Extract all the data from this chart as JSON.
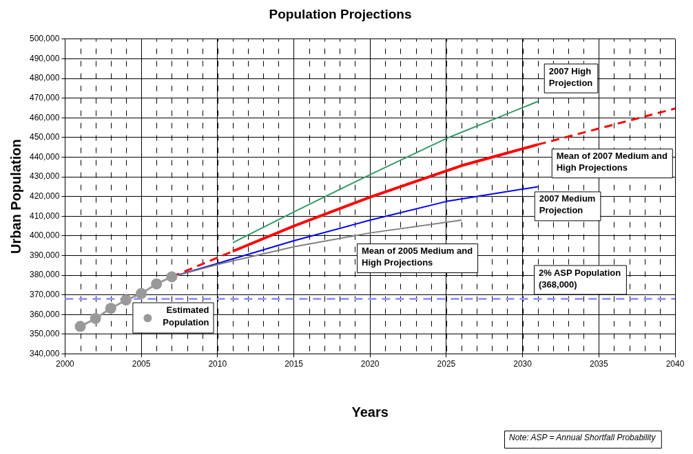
{
  "chart_data": {
    "type": "line",
    "title": "Population Projections",
    "xlabel": "Years",
    "ylabel": "Urban Population",
    "xlim": [
      2000,
      2040
    ],
    "xticks": [
      2000,
      2005,
      2010,
      2015,
      2020,
      2025,
      2030,
      2035,
      2040
    ],
    "ylim": [
      340000,
      500000
    ],
    "yticks": [
      {
        "value": 340000,
        "label": "340,000"
      },
      {
        "value": 350000,
        "label": "350,000"
      },
      {
        "value": 360000,
        "label": "360,000"
      },
      {
        "value": 370000,
        "label": "370,000"
      },
      {
        "value": 380000,
        "label": "380,000"
      },
      {
        "value": 390000,
        "label": "390,000"
      },
      {
        "value": 400000,
        "label": "400,000"
      },
      {
        "value": 410000,
        "label": "410,000"
      },
      {
        "value": 420000,
        "label": "420,000"
      },
      {
        "value": 430000,
        "label": "430,000"
      },
      {
        "value": 440000,
        "label": "440,000"
      },
      {
        "value": 450000,
        "label": "450,000"
      },
      {
        "value": 460000,
        "label": "460,000"
      },
      {
        "value": 470000,
        "label": "470,000"
      },
      {
        "value": 480000,
        "label": "480,000"
      },
      {
        "value": 490000,
        "label": "490,000"
      },
      {
        "value": 500000,
        "label": "500,000"
      }
    ],
    "grid": true,
    "legend": "bottom left",
    "series": [
      {
        "name": "Estimated Population",
        "color": "#999999",
        "marker": "circle",
        "x": [
          2001,
          2002,
          2003,
          2004,
          2005,
          2006,
          2007
        ],
        "values": [
          354000,
          358000,
          363200,
          367400,
          370700,
          375600,
          379200
        ]
      },
      {
        "name": "Mean of 2005 Medium and High Projections",
        "color": "#808080",
        "x": [
          2007,
          2010,
          2015,
          2020,
          2026
        ],
        "values": [
          379200,
          385500,
          394500,
          401500,
          408000
        ]
      },
      {
        "name": "2007 Medium Projection",
        "color": "#0000ff",
        "x": [
          2007,
          2010,
          2015,
          2020,
          2025,
          2031
        ],
        "values": [
          379200,
          386000,
          397500,
          408000,
          417500,
          425000
        ]
      },
      {
        "name": "2007 High Projection",
        "color": "#339966",
        "x": [
          2011,
          2015,
          2020,
          2025,
          2031
        ],
        "values": [
          396500,
          412200,
          431100,
          449500,
          468300
        ]
      },
      {
        "name": "Mean of 2007 Medium and High Projections",
        "color": "#ff0000",
        "x": [
          2011,
          2015,
          2020,
          2026,
          2028,
          2031
        ],
        "values": [
          392200,
          405000,
          419700,
          435700,
          440000,
          446400
        ]
      },
      {
        "color": "#ff0000",
        "line_style": "dashed",
        "x": [
          2007,
          2011,
          2021,
          2031,
          2040
        ],
        "values": [
          379200,
          392200,
          null,
          446400,
          464700
        ]
      }
    ],
    "ref_lines": [
      {
        "axis": "y",
        "value": 368000,
        "label": "2% ASP Population (368,000)",
        "color": "#9999ff",
        "line_style": "dashed"
      }
    ],
    "annotations": [
      "Note: ASP = Annual Shortfall Probability"
    ]
  }
}
